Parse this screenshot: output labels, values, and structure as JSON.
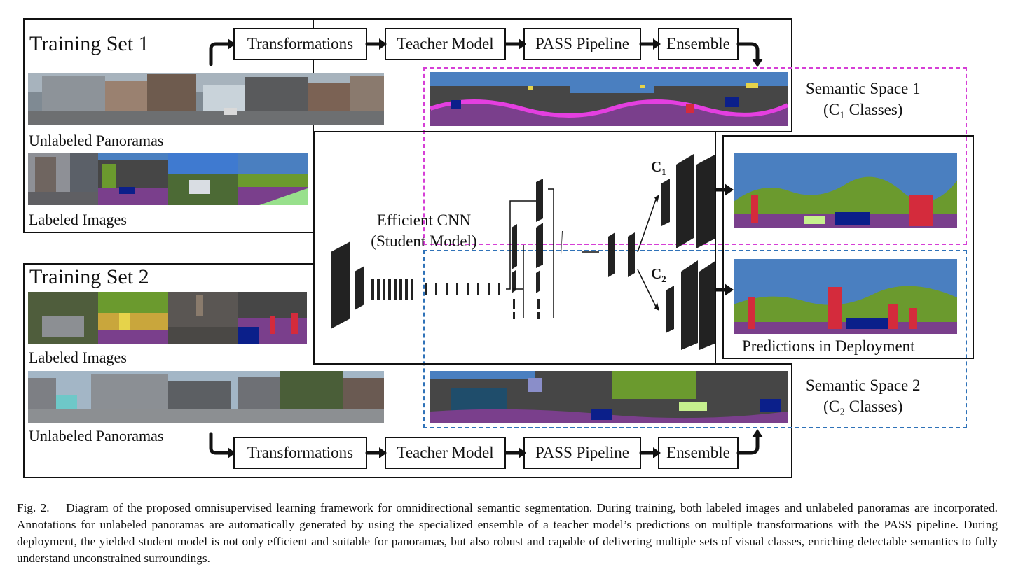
{
  "training_set_1": {
    "title": "Training Set 1",
    "unlabeled_label": "Unlabeled Panoramas",
    "labeled_label": "Labeled Images",
    "pipeline": [
      "Transformations",
      "Teacher Model",
      "PASS Pipeline",
      "Ensemble"
    ]
  },
  "training_set_2": {
    "title": "Training Set 2",
    "labeled_label": "Labeled Images",
    "unlabeled_label": "Unlabeled Panoramas",
    "pipeline": [
      "Transformations",
      "Teacher Model",
      "PASS Pipeline",
      "Ensemble"
    ]
  },
  "student": {
    "line1": "Efficient CNN",
    "line2": "(Student Model)"
  },
  "heads": {
    "c1": "C",
    "c1_sub": "1",
    "c2": "C",
    "c2_sub": "2"
  },
  "semantic_space_1": {
    "line1": "Semantic Space 1",
    "line2": "(C₁ Classes)"
  },
  "semantic_space_2": {
    "line1": "Semantic Space 2",
    "line2": "(C₂ Classes)"
  },
  "deployment": {
    "label": "Predictions in Deployment"
  },
  "caption": "Fig. 2.  Diagram of the proposed omnisupervised learning framework for omnidirectional semantic segmentation. During training, both labeled images and unlabeled panoramas are incorporated. Annotations for unlabeled panoramas are automatically generated by using the specialized ensemble of a teacher model’s predictions on multiple transformations with the PASS pipeline. During deployment, the yielded student model is not only efficient and suitable for panoramas, but also robust and capable of delivering multiple sets of visual classes, enriching detectable semantics to fully understand unconstrained surroundings.",
  "colors": {
    "space1_border": "#d63fd6",
    "space2_border": "#2f72b8",
    "seg_sky": "#4a7fc0",
    "seg_building": "#464646",
    "seg_road": "#7a3f8c",
    "seg_vegetation": "#6b9a2e",
    "seg_car": "#0b1f8a",
    "seg_person": "#d42b3c",
    "seg_sidewalk": "#e43fe0"
  }
}
